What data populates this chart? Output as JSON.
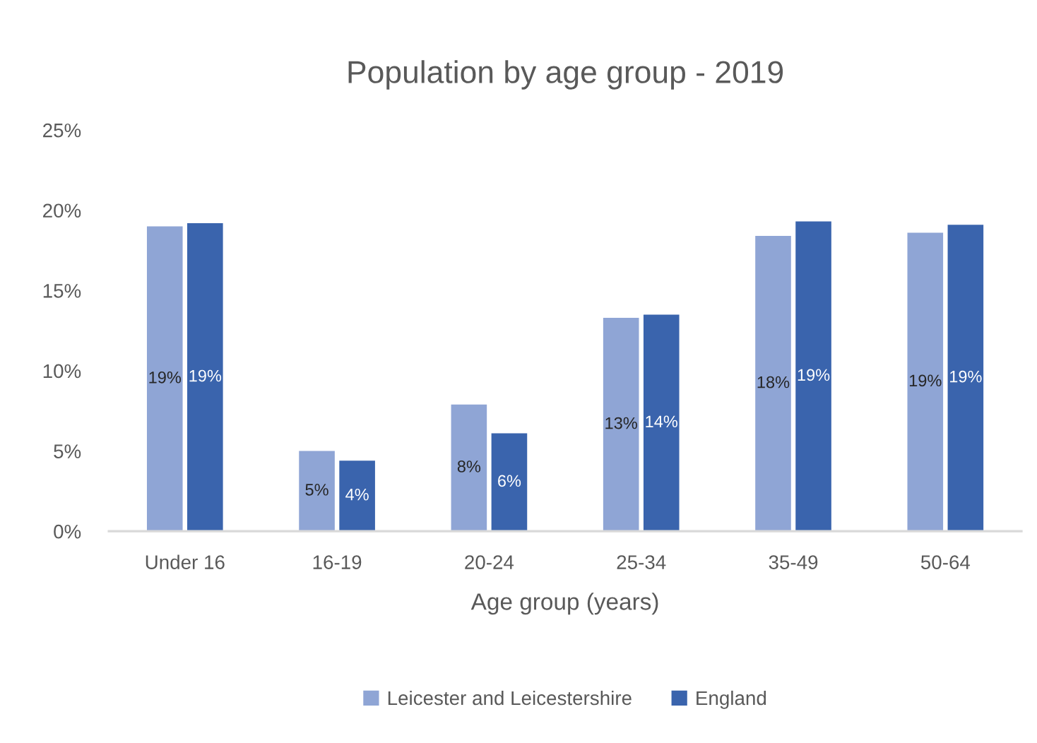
{
  "chart_data": {
    "type": "bar",
    "title": "Population by age group - 2019",
    "xlabel": "Age group (years)",
    "categories": [
      "Under 16",
      "16-19",
      "20-24",
      "25-34",
      "35-49",
      "50-64"
    ],
    "series": [
      {
        "name": "Leicester and Leicestershire",
        "color": "#8fa5d5",
        "values": [
          19.0,
          5.0,
          7.9,
          13.3,
          18.4,
          18.6
        ],
        "value_labels": [
          "19%",
          "5%",
          "8%",
          "13%",
          "18%",
          "19%"
        ]
      },
      {
        "name": "England",
        "color": "#3a64ad",
        "values": [
          19.2,
          4.4,
          6.1,
          13.5,
          19.3,
          19.1
        ],
        "value_labels": [
          "19%",
          "4%",
          "6%",
          "14%",
          "19%",
          "19%"
        ]
      }
    ],
    "ylim": [
      0,
      25
    ],
    "yticks": [
      {
        "value": 0,
        "label": "0%"
      },
      {
        "value": 5,
        "label": "5%"
      },
      {
        "value": 10,
        "label": "10%"
      },
      {
        "value": 15,
        "label": "15%"
      },
      {
        "value": 20,
        "label": "20%"
      },
      {
        "value": 25,
        "label": "25%"
      }
    ],
    "grid": false,
    "legend": "bottom"
  }
}
